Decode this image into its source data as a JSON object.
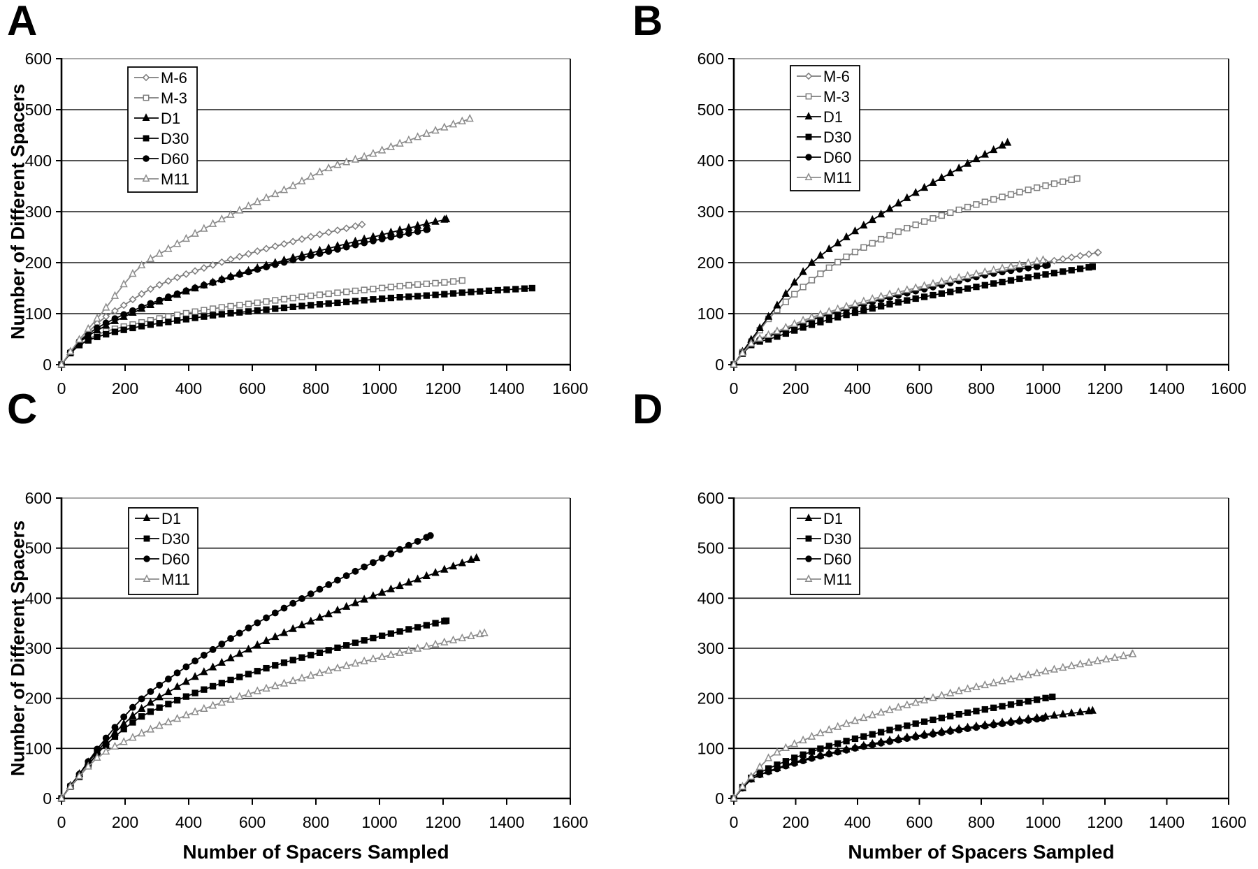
{
  "figure": {
    "background": "#ffffff",
    "axis_color": "#000000",
    "grid_color": "#1a1a1a",
    "top_border_color": "#8c8c8c",
    "series_styles": {
      "M-6": {
        "marker": "diamond",
        "filled": false,
        "color": "#7d7d7d"
      },
      "M-3": {
        "marker": "square",
        "filled": false,
        "color": "#7d7d7d"
      },
      "D1": {
        "marker": "triangle",
        "filled": true,
        "color": "#000000"
      },
      "D30": {
        "marker": "square",
        "filled": true,
        "color": "#000000"
      },
      "D60": {
        "marker": "circle",
        "filled": true,
        "color": "#000000"
      },
      "M11": {
        "marker": "triangle",
        "filled": false,
        "color": "#8c8c8c"
      }
    }
  },
  "chart_data": [
    {
      "type": "line",
      "panel_label": "A",
      "x_axis_title": "",
      "y_axis_title": "Number of Different Spacers",
      "xlim": [
        0,
        1600
      ],
      "ylim": [
        0,
        600
      ],
      "x_ticks": [
        0,
        200,
        400,
        600,
        800,
        1000,
        1200,
        1400,
        1600
      ],
      "y_ticks": [
        0,
        100,
        200,
        300,
        400,
        500,
        600
      ],
      "grid": "horizontal",
      "legend_position": "top-left-inside",
      "legend": [
        "M-6",
        "M-3",
        "D1",
        "D30",
        "D60",
        "M11"
      ],
      "series": [
        {
          "name": "M-6",
          "x": [
            0,
            30,
            60,
            120,
            180,
            270,
            360,
            450,
            540,
            630,
            720,
            810,
            900,
            945
          ],
          "y": [
            0,
            26,
            48,
            85,
            110,
            145,
            170,
            190,
            208,
            225,
            240,
            255,
            268,
            275
          ]
        },
        {
          "name": "M-3",
          "x": [
            0,
            30,
            60,
            120,
            240,
            360,
            480,
            600,
            720,
            840,
            960,
            1080,
            1200,
            1260
          ],
          "y": [
            0,
            24,
            40,
            61,
            81,
            97,
            110,
            120,
            130,
            139,
            147,
            155,
            161,
            165
          ]
        },
        {
          "name": "D1",
          "x": [
            0,
            30,
            60,
            120,
            240,
            360,
            480,
            600,
            720,
            840,
            960,
            1080,
            1210
          ],
          "y": [
            0,
            26,
            46,
            70,
            106,
            136,
            162,
            186,
            208,
            228,
            247,
            266,
            285
          ]
        },
        {
          "name": "D30",
          "x": [
            0,
            30,
            60,
            120,
            240,
            360,
            480,
            600,
            740,
            880,
            1020,
            1160,
            1300,
            1480
          ],
          "y": [
            0,
            24,
            40,
            56,
            74,
            86,
            97,
            105,
            114,
            122,
            130,
            136,
            143,
            150
          ]
        },
        {
          "name": "D60",
          "x": [
            0,
            30,
            60,
            120,
            240,
            360,
            480,
            600,
            720,
            840,
            960,
            1150
          ],
          "y": [
            0,
            26,
            48,
            75,
            110,
            138,
            162,
            184,
            204,
            222,
            240,
            265
          ]
        },
        {
          "name": "M11",
          "x": [
            0,
            30,
            60,
            125,
            240,
            360,
            480,
            600,
            720,
            840,
            960,
            1080,
            1200,
            1284
          ],
          "y": [
            0,
            27,
            52,
            100,
            188,
            235,
            277,
            314,
            348,
            385,
            409,
            437,
            464,
            482
          ]
        }
      ]
    },
    {
      "type": "line",
      "panel_label": "B",
      "x_axis_title": "",
      "y_axis_title": "",
      "xlim": [
        0,
        1600
      ],
      "ylim": [
        0,
        600
      ],
      "x_ticks": [
        0,
        200,
        400,
        600,
        800,
        1000,
        1200,
        1400,
        1600
      ],
      "y_ticks": [
        0,
        100,
        200,
        300,
        400,
        500,
        600
      ],
      "grid": "horizontal",
      "legend_position": "top-left-inside",
      "legend": [
        "M-6",
        "M-3",
        "D1",
        "D30",
        "D60",
        "M11"
      ],
      "series": [
        {
          "name": "M-6",
          "x": [
            0,
            30,
            60,
            120,
            240,
            360,
            480,
            600,
            720,
            840,
            960,
            1080,
            1178
          ],
          "y": [
            0,
            24,
            42,
            58,
            87,
            110,
            130,
            149,
            165,
            181,
            195,
            209,
            220
          ]
        },
        {
          "name": "M-3",
          "x": [
            0,
            30,
            60,
            120,
            240,
            360,
            480,
            600,
            720,
            840,
            960,
            1110
          ],
          "y": [
            0,
            26,
            48,
            95,
            160,
            210,
            247,
            277,
            302,
            324,
            344,
            365
          ]
        },
        {
          "name": "D1",
          "x": [
            0,
            30,
            60,
            120,
            240,
            360,
            480,
            600,
            720,
            885
          ],
          "y": [
            0,
            27,
            52,
            100,
            192,
            248,
            296,
            341,
            382,
            435
          ]
        },
        {
          "name": "D30",
          "x": [
            0,
            30,
            60,
            120,
            240,
            360,
            480,
            600,
            720,
            840,
            960,
            1080,
            1160
          ],
          "y": [
            0,
            23,
            40,
            51,
            76,
            97,
            115,
            131,
            145,
            159,
            172,
            184,
            192
          ]
        },
        {
          "name": "D60",
          "x": [
            0,
            30,
            60,
            120,
            240,
            360,
            480,
            600,
            720,
            840,
            1014
          ],
          "y": [
            0,
            24,
            42,
            57,
            85,
            108,
            128,
            146,
            163,
            179,
            195
          ]
        },
        {
          "name": "M11",
          "x": [
            0,
            30,
            60,
            120,
            240,
            360,
            480,
            600,
            720,
            840,
            1000
          ],
          "y": [
            0,
            24,
            43,
            60,
            90,
            113,
            134,
            152,
            169,
            185,
            205
          ]
        }
      ]
    },
    {
      "type": "line",
      "panel_label": "C",
      "x_axis_title": "Number of Spacers Sampled",
      "y_axis_title": "Number of Different Spacers",
      "xlim": [
        0,
        1600
      ],
      "ylim": [
        0,
        600
      ],
      "x_ticks": [
        0,
        200,
        400,
        600,
        800,
        1000,
        1200,
        1400,
        1600
      ],
      "y_ticks": [
        0,
        100,
        200,
        300,
        400,
        500,
        600
      ],
      "grid": "horizontal",
      "legend_position": "top-left-inside",
      "legend": [
        "D1",
        "D30",
        "D60",
        "M11"
      ],
      "series": [
        {
          "name": "D1",
          "x": [
            0,
            30,
            60,
            120,
            240,
            360,
            480,
            600,
            720,
            840,
            960,
            1080,
            1200,
            1305
          ],
          "y": [
            0,
            27,
            52,
            100,
            173,
            221,
            263,
            301,
            336,
            368,
            399,
            428,
            456,
            480
          ]
        },
        {
          "name": "D30",
          "x": [
            0,
            30,
            60,
            120,
            240,
            360,
            480,
            600,
            720,
            840,
            960,
            1080,
            1210
          ],
          "y": [
            0,
            25,
            46,
            95,
            159,
            195,
            225,
            251,
            275,
            296,
            317,
            336,
            355
          ]
        },
        {
          "name": "D60",
          "x": [
            0,
            30,
            60,
            120,
            240,
            360,
            480,
            600,
            720,
            840,
            960,
            1080,
            1160
          ],
          "y": [
            0,
            27,
            52,
            105,
            192,
            249,
            299,
            345,
            387,
            427,
            465,
            502,
            525
          ]
        },
        {
          "name": "M11",
          "x": [
            0,
            30,
            60,
            120,
            240,
            360,
            480,
            600,
            720,
            840,
            960,
            1080,
            1200,
            1330
          ],
          "y": [
            0,
            25,
            47,
            85,
            126,
            158,
            186,
            211,
            233,
            255,
            275,
            293,
            311,
            330
          ]
        }
      ]
    },
    {
      "type": "line",
      "panel_label": "D",
      "x_axis_title": "Number of Spacers Sampled",
      "y_axis_title": "",
      "xlim": [
        0,
        1600
      ],
      "ylim": [
        0,
        600
      ],
      "x_ticks": [
        0,
        200,
        400,
        600,
        800,
        1000,
        1200,
        1400,
        1600
      ],
      "y_ticks": [
        0,
        100,
        200,
        300,
        400,
        500,
        600
      ],
      "grid": "horizontal",
      "legend_position": "top-left-inside",
      "legend": [
        "D1",
        "D30",
        "D60",
        "M11"
      ],
      "series": [
        {
          "name": "D1",
          "x": [
            0,
            30,
            60,
            120,
            240,
            360,
            480,
            600,
            720,
            840,
            960,
            1080,
            1160
          ],
          "y": [
            0,
            22,
            40,
            56,
            80,
            97,
            113,
            126,
            138,
            149,
            159,
            169,
            175
          ]
        },
        {
          "name": "D30",
          "x": [
            0,
            30,
            60,
            120,
            240,
            360,
            480,
            600,
            720,
            840,
            960,
            1030
          ],
          "y": [
            0,
            24,
            43,
            62,
            91,
            114,
            133,
            151,
            167,
            181,
            195,
            203
          ]
        },
        {
          "name": "D60",
          "x": [
            0,
            30,
            60,
            120,
            240,
            360,
            480,
            600,
            720,
            840,
            1000
          ],
          "y": [
            0,
            22,
            40,
            55,
            78,
            96,
            111,
            124,
            136,
            147,
            160
          ]
        },
        {
          "name": "M11",
          "x": [
            0,
            30,
            60,
            120,
            240,
            360,
            480,
            600,
            720,
            840,
            960,
            1080,
            1200,
            1290
          ],
          "y": [
            0,
            25,
            46,
            84,
            120,
            148,
            172,
            193,
            213,
            230,
            247,
            263,
            277,
            288
          ]
        }
      ]
    }
  ]
}
